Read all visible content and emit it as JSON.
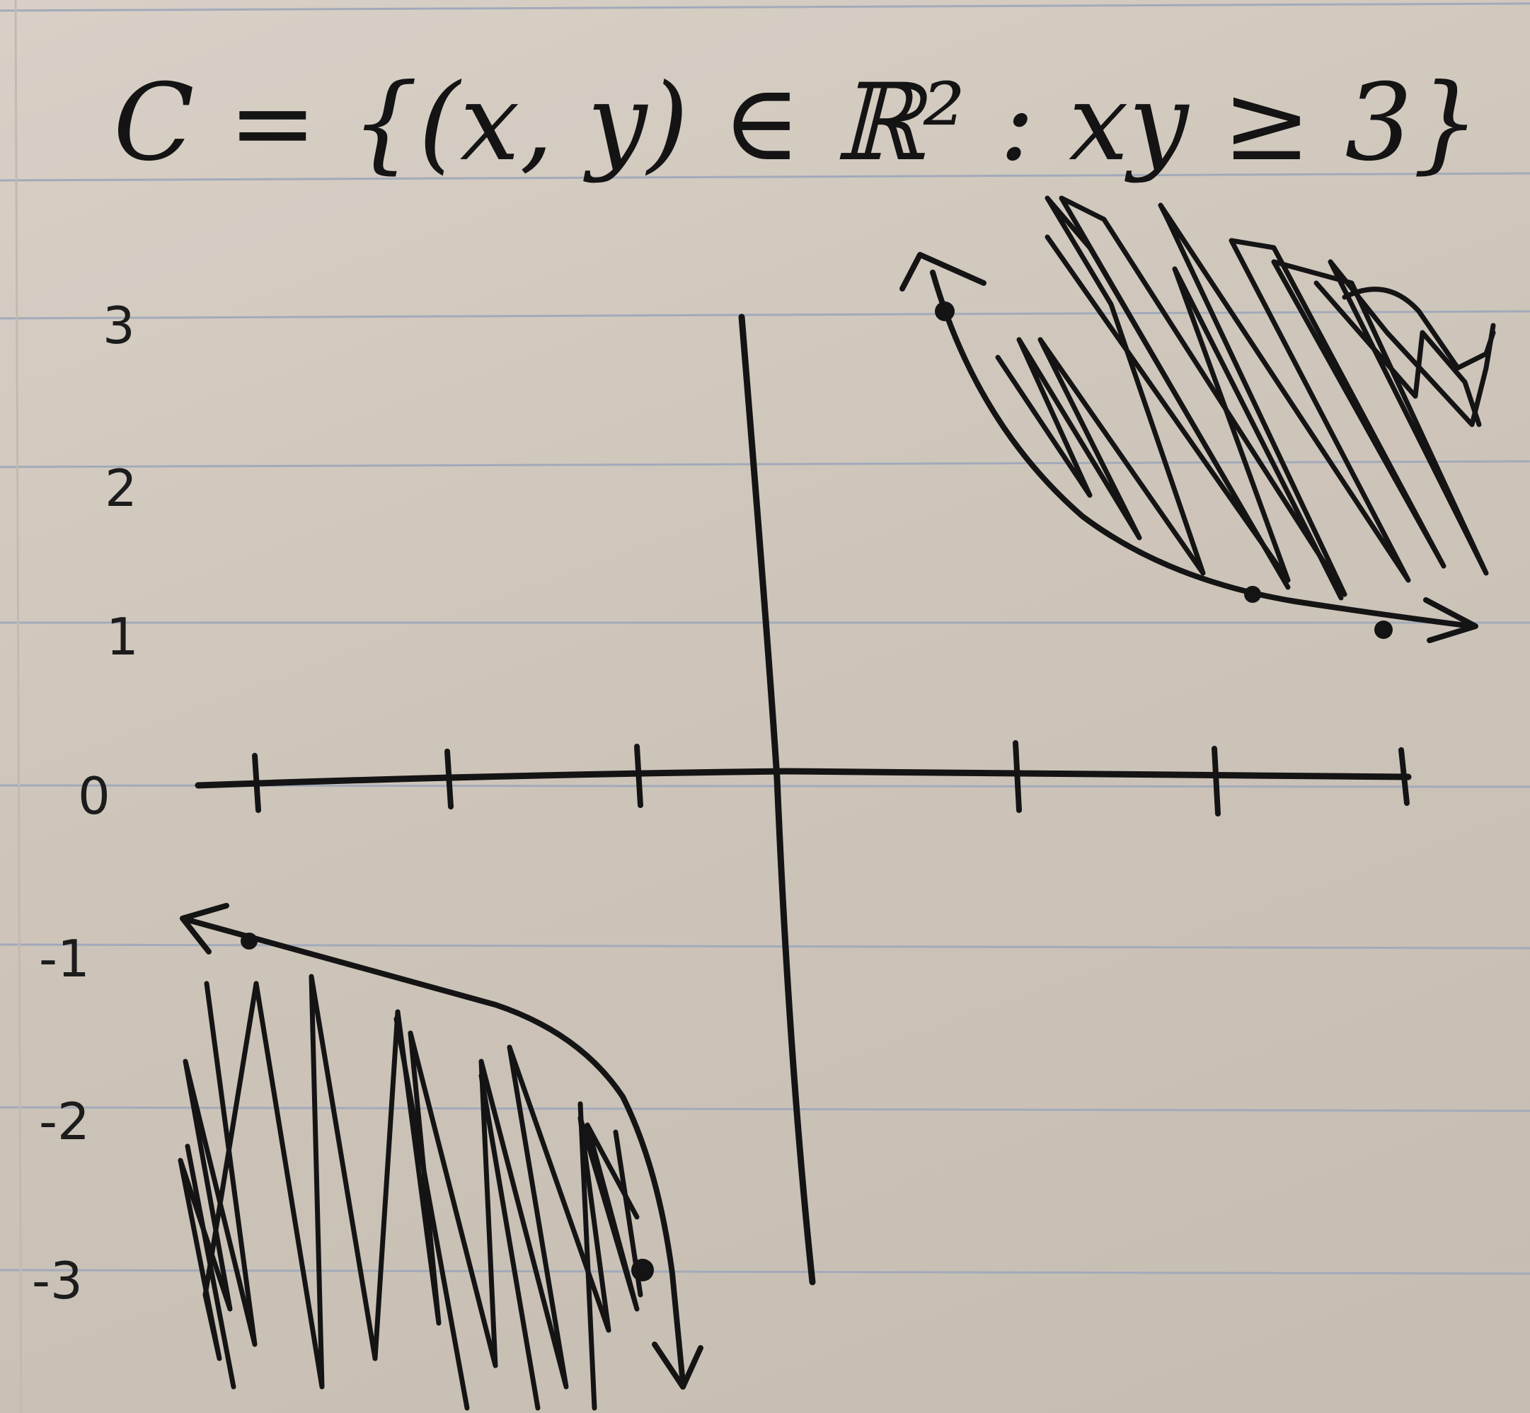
{
  "title": "C = {(x, y) ∈ ℝ² : xy ≥ 3}",
  "y_tick_labels": [
    "3",
    "2",
    "1",
    "0",
    "-1",
    "-2",
    "-3"
  ],
  "colors": {
    "ink": "#141414",
    "paper": "#d4ccc1",
    "rule_line": "#9fa8b8"
  },
  "chart_data": {
    "type": "area",
    "title": "C = {(x, y) ∈ ℝ² : xy ≥ 3}",
    "xlabel": "",
    "ylabel": "",
    "y_ticks": [
      3,
      2,
      1,
      0,
      -1,
      -2,
      -3
    ],
    "x_ticks_unlabeled": 6,
    "series": [
      {
        "curve": "xy = 3",
        "branch": "first-quadrant",
        "marked_points": [
          [
            1,
            3
          ],
          [
            2,
            1.5
          ],
          [
            3,
            1
          ]
        ],
        "shaded": "above-right"
      },
      {
        "curve": "xy = 3",
        "branch": "third-quadrant",
        "marked_points": [
          [
            -3,
            -1
          ],
          [
            -1,
            -3
          ]
        ],
        "shaded": "below-left"
      }
    ],
    "grid": false
  }
}
